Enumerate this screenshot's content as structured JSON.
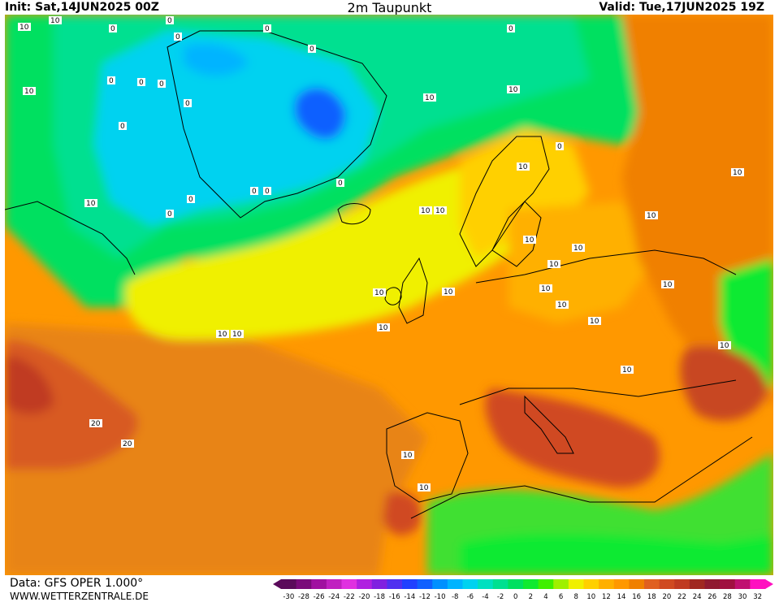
{
  "header": {
    "init_label": "Init: Sat,14JUN2025 00Z",
    "title": "2m Taupunkt",
    "valid_label": "Valid: Tue,17JUN2025 19Z"
  },
  "footer": {
    "data_source": "Data: GFS OPER 1.000°",
    "site": "WWW.WETTERZENTRALE.DE"
  },
  "legend": {
    "tick_labels": [
      "-30",
      "-28",
      "-26",
      "-24",
      "-22",
      "-20",
      "-18",
      "-16",
      "-14",
      "-12",
      "-10",
      "-8",
      "-6",
      "-4",
      "-2",
      "0",
      "2",
      "4",
      "6",
      "8",
      "10",
      "12",
      "14",
      "16",
      "18",
      "20",
      "22",
      "24",
      "26",
      "28",
      "30",
      "32"
    ],
    "colors": [
      "#5a0a5a",
      "#7a0a7a",
      "#a010a0",
      "#c020c0",
      "#e030e0",
      "#b020e0",
      "#8020e0",
      "#5030f0",
      "#2040ff",
      "#1060ff",
      "#0090ff",
      "#00b4ff",
      "#00d2f0",
      "#00e0c0",
      "#00e090",
      "#00e060",
      "#10ea30",
      "#40f000",
      "#a0f000",
      "#f0f000",
      "#ffd000",
      "#ffb000",
      "#ff9800",
      "#f08000",
      "#e06020",
      "#d04a20",
      "#c03a20",
      "#a02820",
      "#901a30",
      "#a01040",
      "#c01070",
      "#ff10c0"
    ]
  },
  "map": {
    "contour_labels": [
      "10",
      "10",
      "0",
      "0",
      "0",
      "0",
      "0",
      "10",
      "10",
      "0",
      "0",
      "0",
      "0",
      "0",
      "0",
      "0",
      "0",
      "0",
      "0",
      "10",
      "10",
      "10",
      "10",
      "10",
      "10",
      "10",
      "10",
      "20",
      "20",
      "10",
      "10",
      "10",
      "10",
      "10",
      "10",
      "10",
      "10",
      "10",
      "10",
      "10",
      "10",
      "10",
      "10",
      "10",
      "0",
      "0"
    ],
    "colors": {
      "ocean_warm": "#e07818",
      "ocean_hot": "#c84620",
      "greenland_cold": "#00d2f0",
      "greenland_core": "#1060ff",
      "arctic_green": "#00e060",
      "mid_green": "#10ea30",
      "yellow_band": "#f0f000",
      "land_orange": "#ff9800",
      "africa_green": "#40e030",
      "coast_line": "#000000"
    }
  }
}
